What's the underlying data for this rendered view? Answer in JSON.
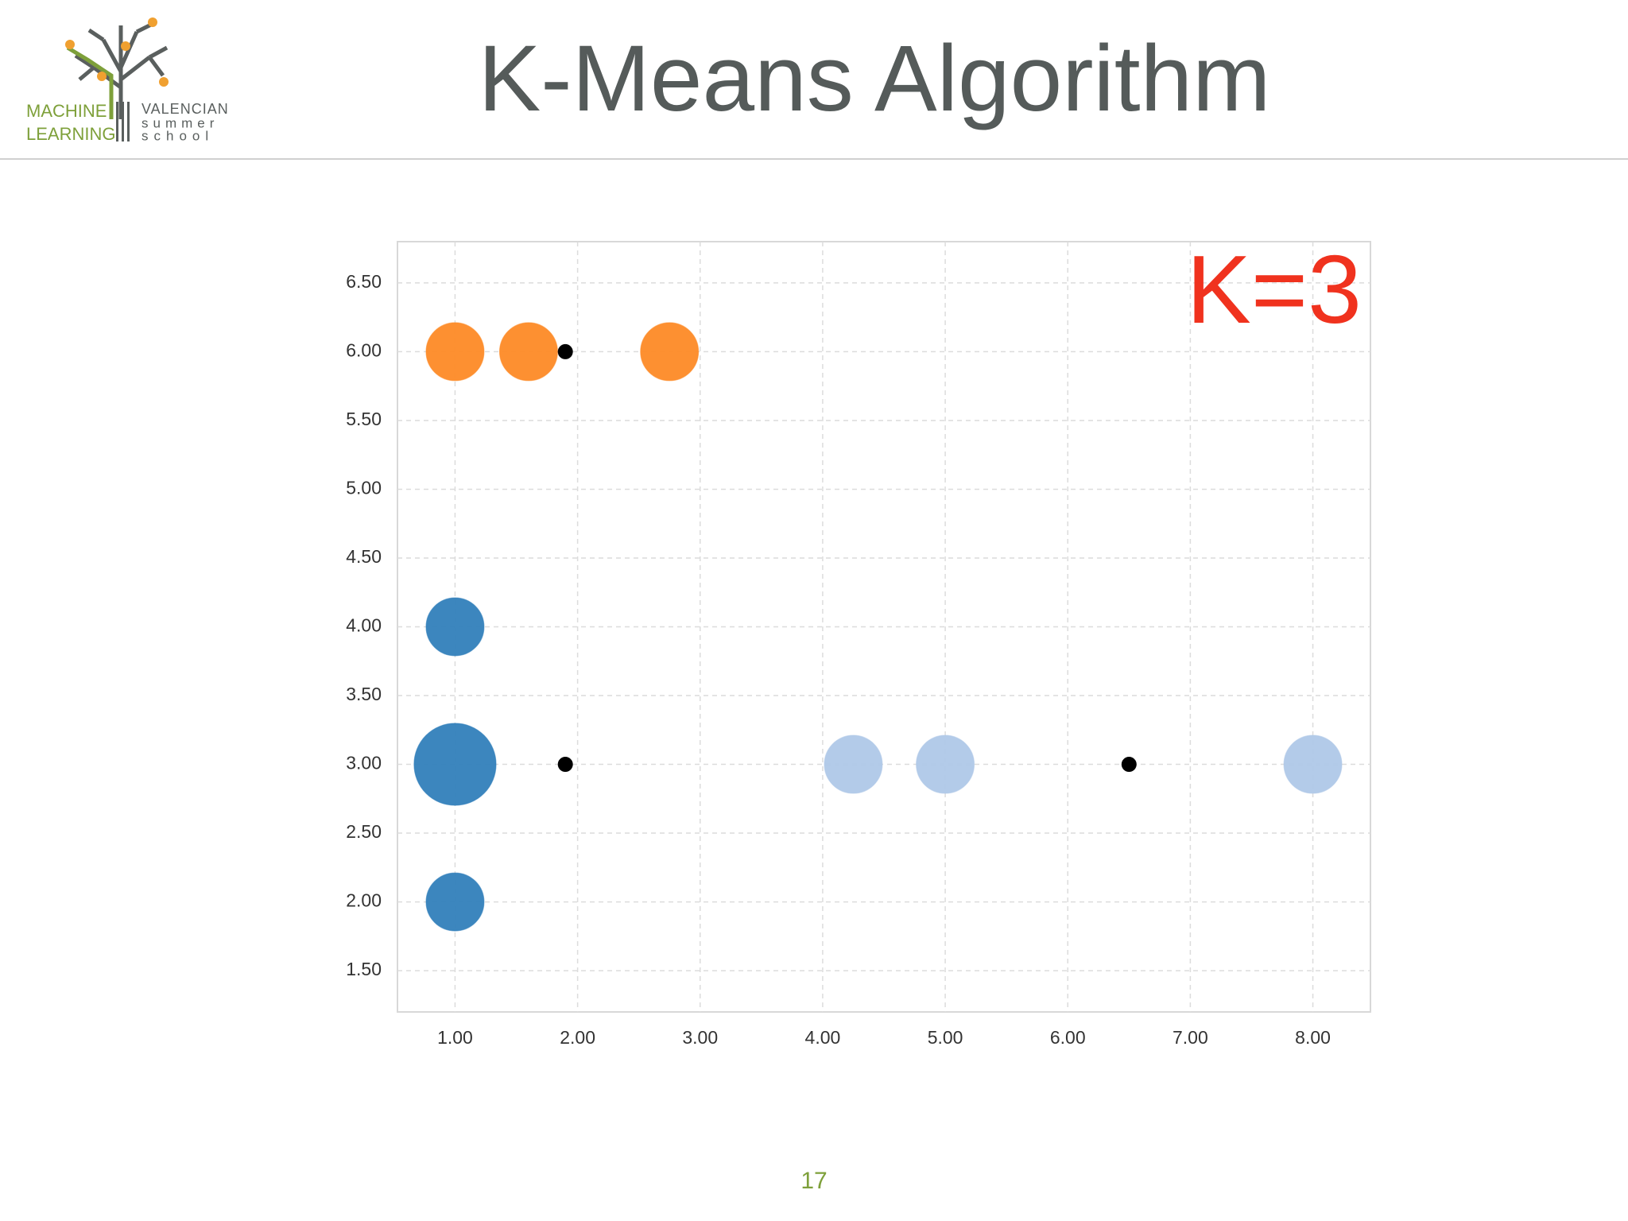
{
  "header": {
    "logo": {
      "left": [
        "MACHINE",
        "LEARNING"
      ],
      "right": [
        "VALENCIAN",
        "summer",
        "school"
      ]
    },
    "title": "K-Means Algorithm"
  },
  "chart_data": {
    "type": "scatter",
    "annotation": "K=3",
    "xlim": [
      0.53,
      8.47
    ],
    "ylim": [
      1.2,
      6.8
    ],
    "xticks": [
      {
        "value": 1,
        "label": "1.00"
      },
      {
        "value": 2,
        "label": "2.00"
      },
      {
        "value": 3,
        "label": "3.00"
      },
      {
        "value": 4,
        "label": "4.00"
      },
      {
        "value": 5,
        "label": "5.00"
      },
      {
        "value": 6,
        "label": "6.00"
      },
      {
        "value": 7,
        "label": "7.00"
      },
      {
        "value": 8,
        "label": "8.00"
      }
    ],
    "yticks": [
      {
        "value": 1.5,
        "label": "1.50"
      },
      {
        "value": 2,
        "label": "2.00"
      },
      {
        "value": 2.5,
        "label": "2.50"
      },
      {
        "value": 3,
        "label": "3.00"
      },
      {
        "value": 3.5,
        "label": "3.50"
      },
      {
        "value": 4,
        "label": "4.00"
      },
      {
        "value": 4.5,
        "label": "4.50"
      },
      {
        "value": 5,
        "label": "5.00"
      },
      {
        "value": 5.5,
        "label": "5.50"
      },
      {
        "value": 6,
        "label": "6.00"
      },
      {
        "value": 6.5,
        "label": "6.50"
      }
    ],
    "grid": true,
    "series": [
      {
        "color": "#fd8a26",
        "x": [
          1,
          1.6,
          2.75
        ],
        "y": [
          6,
          6,
          6
        ],
        "sizes": [
          1,
          1,
          1
        ]
      },
      {
        "color": "#317fbb",
        "x": [
          1,
          1,
          1
        ],
        "y": [
          4,
          3,
          2
        ],
        "sizes": [
          1,
          2,
          1
        ]
      },
      {
        "color": "#afc8e8",
        "x": [
          4.25,
          5,
          8
        ],
        "y": [
          3,
          3,
          3
        ],
        "sizes": [
          1,
          1,
          1
        ]
      },
      {
        "color": "#000000",
        "x": [
          1.9,
          1.9,
          6.5
        ],
        "y": [
          6,
          3,
          3
        ]
      }
    ]
  },
  "page_number": "17"
}
